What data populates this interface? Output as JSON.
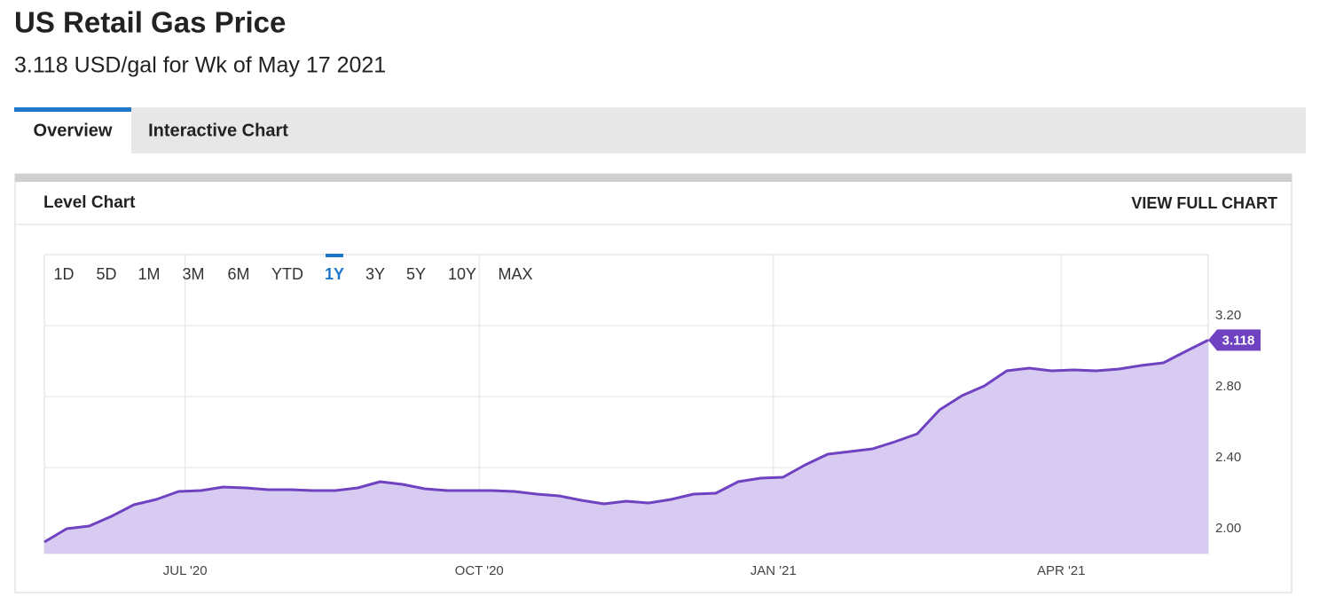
{
  "header": {
    "title": "US Retail Gas Price",
    "subtitle": "3.118 USD/gal for Wk of May 17 2021"
  },
  "tabs": {
    "items": [
      "Overview",
      "Interactive Chart"
    ],
    "active": 0
  },
  "panel": {
    "title": "Level Chart",
    "action": "VIEW FULL CHART"
  },
  "range_buttons": {
    "items": [
      "1D",
      "5D",
      "1M",
      "3M",
      "6M",
      "YTD",
      "1Y",
      "3Y",
      "5Y",
      "10Y",
      "MAX"
    ],
    "selected": 6
  },
  "chart_data": {
    "type": "area",
    "color": "#6f42c1",
    "fill": "#d8cbf1",
    "values": [
      1.98,
      2.055,
      2.07,
      2.125,
      2.19,
      2.22,
      2.265,
      2.27,
      2.29,
      2.285,
      2.275,
      2.275,
      2.27,
      2.27,
      2.285,
      2.32,
      2.305,
      2.28,
      2.27,
      2.27,
      2.27,
      2.265,
      2.25,
      2.24,
      2.215,
      2.195,
      2.21,
      2.2,
      2.22,
      2.25,
      2.255,
      2.32,
      2.34,
      2.345,
      2.415,
      2.475,
      2.49,
      2.505,
      2.545,
      2.59,
      2.725,
      2.805,
      2.86,
      2.945,
      2.96,
      2.945,
      2.95,
      2.945,
      2.955,
      2.975,
      2.99,
      3.055,
      3.118
    ],
    "xlim": [
      0,
      52
    ],
    "xticks": [
      {
        "value": 6.29,
        "label": "JUL '20"
      },
      {
        "value": 19.43,
        "label": "OCT '20"
      },
      {
        "value": 32.57,
        "label": "JAN '21"
      },
      {
        "value": 45.43,
        "label": "APR '21"
      }
    ],
    "ylim": [
      1.915,
      3.6
    ],
    "yticks": [
      {
        "value": 2,
        "label": "2.00"
      },
      {
        "value": 2.4,
        "label": "2.40"
      },
      {
        "value": 2.8,
        "label": "2.80"
      },
      {
        "value": 3.2,
        "label": "3.20"
      }
    ],
    "grid": true,
    "last_value_label": true
  }
}
